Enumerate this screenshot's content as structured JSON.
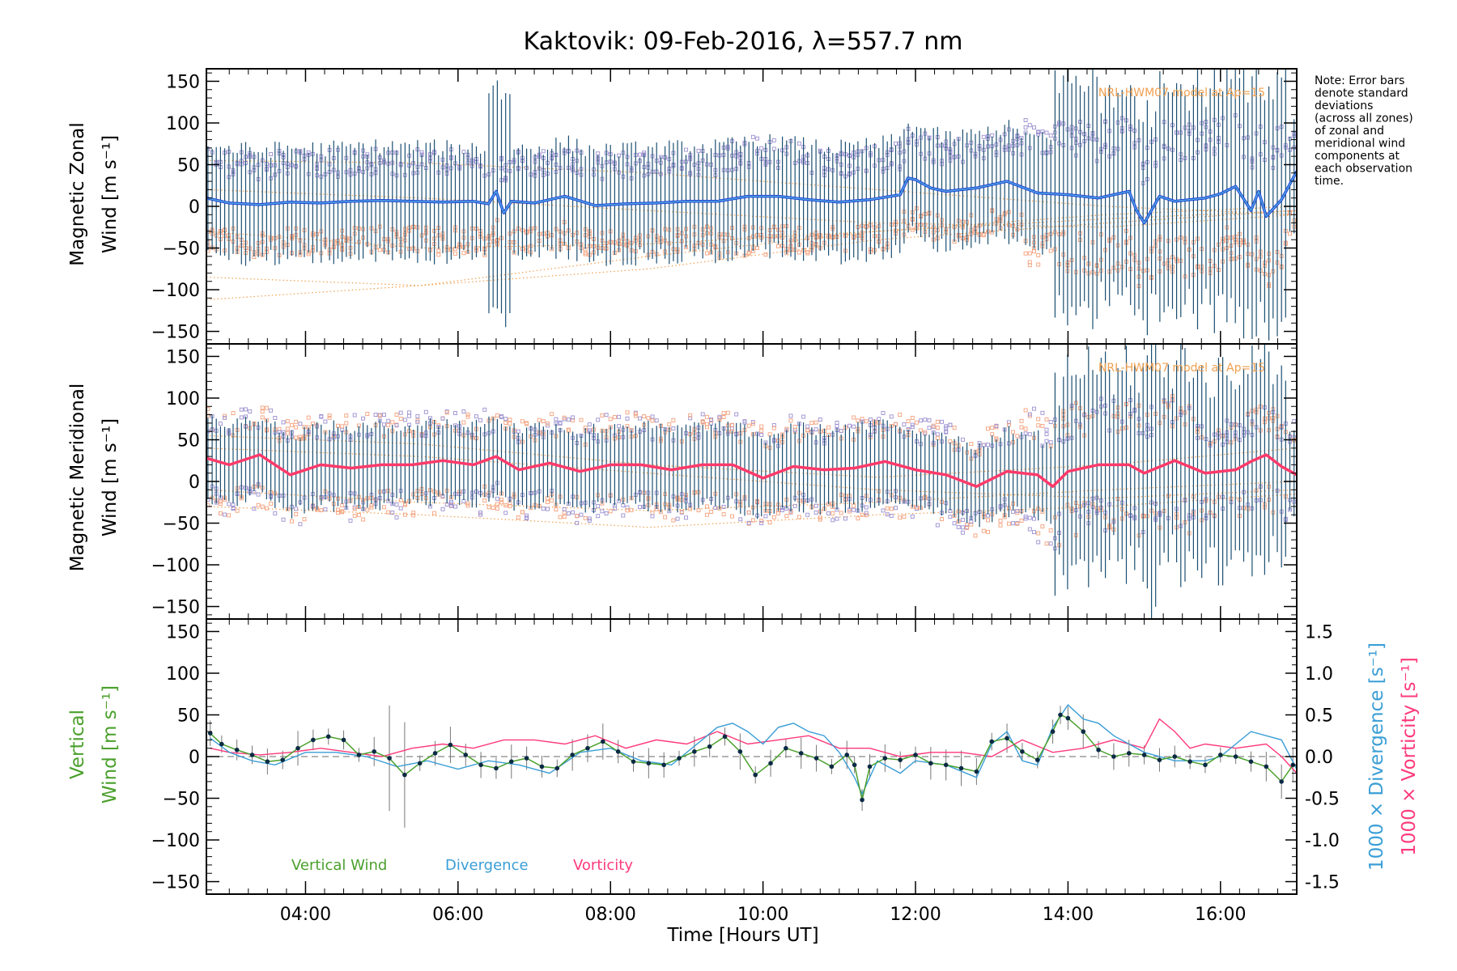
{
  "title": "Kaktovik: 09-Feb-2016, λ=557.7 nm",
  "note_lines": [
    "Note: Error bars",
    "denote standard",
    "deviations",
    "(across all zones)",
    "of zonal and",
    "meridional wind",
    "components at",
    "each observation",
    "time."
  ],
  "colors": {
    "zonal": "#1f3fd6",
    "zonal_light": "#4fa8e0",
    "meridional": "#ff3a6a",
    "errorbar": "#1b4f72",
    "scatter_purple": "#9b8fd0",
    "scatter_orange": "#f4a07c",
    "model": "#f0a050",
    "vertical": "#4aa02c",
    "divergence": "#3a9ed6",
    "vorticity": "#ff3a7a",
    "marker": "#0b2a44"
  },
  "chart_data": [
    {
      "type": "line",
      "panel": "zonal",
      "ylabel_line1": "Magnetic Zonal",
      "ylabel_line2": "Wind [m s⁻¹]",
      "xlim": [
        2.7,
        17.0
      ],
      "ylim": [
        -165,
        165
      ],
      "yticks": [
        -150,
        -100,
        -50,
        0,
        50,
        100,
        150
      ],
      "model_label": "NRL-HWM07 model at Ap=15",
      "mean_wind": {
        "x": [
          2.7,
          3.0,
          3.4,
          3.8,
          4.2,
          4.6,
          5.0,
          5.4,
          5.8,
          6.2,
          6.4,
          6.5,
          6.6,
          6.7,
          7.0,
          7.4,
          7.8,
          8.2,
          8.6,
          9.0,
          9.4,
          9.8,
          10.2,
          10.6,
          11.0,
          11.4,
          11.8,
          11.9,
          12.0,
          12.2,
          12.4,
          12.8,
          13.2,
          13.6,
          14.0,
          14.4,
          14.8,
          14.9,
          15.0,
          15.2,
          15.4,
          15.8,
          16.0,
          16.2,
          16.4,
          16.5,
          16.6,
          16.8,
          17.0
        ],
        "y": [
          10,
          4,
          2,
          5,
          4,
          6,
          7,
          6,
          5,
          6,
          3,
          18,
          -8,
          6,
          4,
          12,
          1,
          3,
          4,
          6,
          6,
          12,
          12,
          8,
          5,
          8,
          14,
          34,
          32,
          22,
          18,
          22,
          30,
          16,
          14,
          10,
          18,
          -5,
          -20,
          12,
          6,
          10,
          15,
          24,
          -5,
          18,
          -12,
          8,
          42
        ]
      }
    },
    {
      "type": "line",
      "panel": "meridional",
      "ylabel_line1": "Magnetic Meridional",
      "ylabel_line2": "Wind [m s⁻¹]",
      "xlim": [
        2.7,
        17.0
      ],
      "ylim": [
        -165,
        165
      ],
      "yticks": [
        -150,
        -100,
        -50,
        0,
        50,
        100,
        150
      ],
      "model_label": "NRL-HWM07 model at Ap=15",
      "mean_wind": {
        "x": [
          2.7,
          3.0,
          3.4,
          3.8,
          4.2,
          4.6,
          5.0,
          5.4,
          5.8,
          6.2,
          6.5,
          6.8,
          7.2,
          7.6,
          8.0,
          8.4,
          8.8,
          9.2,
          9.6,
          10.0,
          10.4,
          10.8,
          11.2,
          11.6,
          12.0,
          12.4,
          12.8,
          13.2,
          13.6,
          13.8,
          14.0,
          14.4,
          14.8,
          15.0,
          15.4,
          15.8,
          16.2,
          16.4,
          16.6,
          16.8,
          17.0
        ],
        "y": [
          28,
          20,
          32,
          8,
          20,
          16,
          20,
          20,
          25,
          20,
          30,
          14,
          22,
          12,
          20,
          20,
          14,
          20,
          20,
          4,
          18,
          14,
          16,
          24,
          14,
          8,
          -6,
          12,
          8,
          -6,
          12,
          20,
          20,
          10,
          25,
          10,
          14,
          24,
          32,
          18,
          8
        ]
      }
    },
    {
      "type": "line",
      "panel": "vertical",
      "ylabel_line1": "Vertical",
      "ylabel_line2": "Wind [m s⁻¹]",
      "right_label_1": "1000 × Divergence [s⁻¹]",
      "right_label_2": "1000 × Vorticity [s⁻¹]",
      "xlim": [
        2.7,
        17.0
      ],
      "ylim": [
        -165,
        165
      ],
      "yticks": [
        -150,
        -100,
        -50,
        0,
        50,
        100,
        150
      ],
      "y2lim": [
        -1.65,
        1.65
      ],
      "y2ticks": [
        -1.5,
        -1.0,
        -0.5,
        0.0,
        0.5,
        1.0,
        1.5
      ],
      "xticks": [
        4,
        6,
        8,
        10,
        12,
        14,
        16
      ],
      "xticklabels": [
        "04:00",
        "06:00",
        "08:00",
        "10:00",
        "12:00",
        "14:00",
        "16:00"
      ],
      "xlabel": "Time [Hours UT]",
      "legend": [
        "Vertical Wind",
        "Divergence",
        "Vorticity"
      ],
      "vertical_wind": {
        "x": [
          2.75,
          2.9,
          3.1,
          3.3,
          3.5,
          3.7,
          3.9,
          4.1,
          4.3,
          4.5,
          4.7,
          4.9,
          5.1,
          5.3,
          5.5,
          5.7,
          5.9,
          6.1,
          6.3,
          6.5,
          6.7,
          6.9,
          7.1,
          7.3,
          7.5,
          7.7,
          7.9,
          8.1,
          8.3,
          8.5,
          8.7,
          8.9,
          9.1,
          9.3,
          9.5,
          9.7,
          9.9,
          10.1,
          10.3,
          10.5,
          10.7,
          10.9,
          11.1,
          11.2,
          11.3,
          11.4,
          11.6,
          11.8,
          12.0,
          12.2,
          12.4,
          12.6,
          12.8,
          13.0,
          13.2,
          13.4,
          13.6,
          13.8,
          13.9,
          14.0,
          14.2,
          14.4,
          14.6,
          14.8,
          15.0,
          15.2,
          15.4,
          15.6,
          15.8,
          16.0,
          16.2,
          16.4,
          16.6,
          16.8,
          16.95
        ],
        "y": [
          28,
          15,
          8,
          2,
          -6,
          -4,
          10,
          20,
          24,
          20,
          2,
          6,
          -2,
          -22,
          -8,
          4,
          14,
          2,
          -10,
          -14,
          -6,
          -2,
          -12,
          -14,
          2,
          10,
          18,
          6,
          -6,
          -8,
          -10,
          -2,
          6,
          12,
          24,
          6,
          -22,
          -8,
          10,
          4,
          -2,
          -12,
          2,
          -10,
          -52,
          -12,
          -2,
          -4,
          2,
          -8,
          -10,
          -14,
          -18,
          18,
          22,
          6,
          -4,
          30,
          50,
          46,
          30,
          8,
          0,
          4,
          2,
          -4,
          0,
          -6,
          -10,
          2,
          0,
          -6,
          -12,
          -30,
          -10
        ]
      },
      "divergence": {
        "x": [
          2.75,
          3.0,
          3.3,
          3.6,
          4.0,
          4.4,
          4.8,
          5.2,
          5.6,
          6.0,
          6.4,
          6.8,
          7.2,
          7.6,
          8.0,
          8.4,
          8.8,
          9.2,
          9.4,
          9.6,
          9.8,
          10.0,
          10.2,
          10.4,
          10.6,
          10.8,
          11.0,
          11.2,
          11.3,
          11.5,
          11.8,
          12.0,
          12.4,
          12.8,
          13.0,
          13.2,
          13.4,
          13.6,
          13.8,
          14.0,
          14.2,
          14.4,
          14.6,
          15.0,
          15.4,
          15.8,
          16.0,
          16.4,
          16.8,
          17.0
        ],
        "y": [
          0.22,
          0.05,
          -0.05,
          -0.1,
          0.05,
          0.05,
          0.0,
          -0.12,
          -0.05,
          -0.15,
          -0.05,
          -0.1,
          -0.2,
          0.05,
          0.1,
          -0.05,
          -0.1,
          0.2,
          0.35,
          0.4,
          0.3,
          0.15,
          0.35,
          0.4,
          0.3,
          0.25,
          0.05,
          -0.25,
          -0.45,
          -0.05,
          -0.2,
          -0.05,
          -0.1,
          -0.25,
          0.15,
          0.3,
          -0.05,
          -0.1,
          0.35,
          0.62,
          0.45,
          0.4,
          0.25,
          0.05,
          -0.05,
          -0.05,
          0.0,
          0.3,
          0.2,
          -0.15
        ]
      },
      "vorticity": {
        "x": [
          2.75,
          3.0,
          3.4,
          3.8,
          4.2,
          4.6,
          5.0,
          5.4,
          5.8,
          6.2,
          6.6,
          7.0,
          7.4,
          7.8,
          8.2,
          8.6,
          9.0,
          9.4,
          9.8,
          10.2,
          10.6,
          11.0,
          11.4,
          11.8,
          12.2,
          12.6,
          13.0,
          13.4,
          13.8,
          14.2,
          14.6,
          15.0,
          15.2,
          15.4,
          15.6,
          15.8,
          16.2,
          16.6,
          16.8,
          17.0
        ],
        "y": [
          0.1,
          0.05,
          0.02,
          0.05,
          0.1,
          0.05,
          0.0,
          0.1,
          0.15,
          0.1,
          0.2,
          0.2,
          0.15,
          0.25,
          0.1,
          0.2,
          0.15,
          0.3,
          0.15,
          0.2,
          0.25,
          0.1,
          0.1,
          0.0,
          0.05,
          0.05,
          0.0,
          0.2,
          0.05,
          0.1,
          0.2,
          0.1,
          0.45,
          0.3,
          0.1,
          0.15,
          0.1,
          0.15,
          0.0,
          -0.2
        ]
      }
    }
  ]
}
